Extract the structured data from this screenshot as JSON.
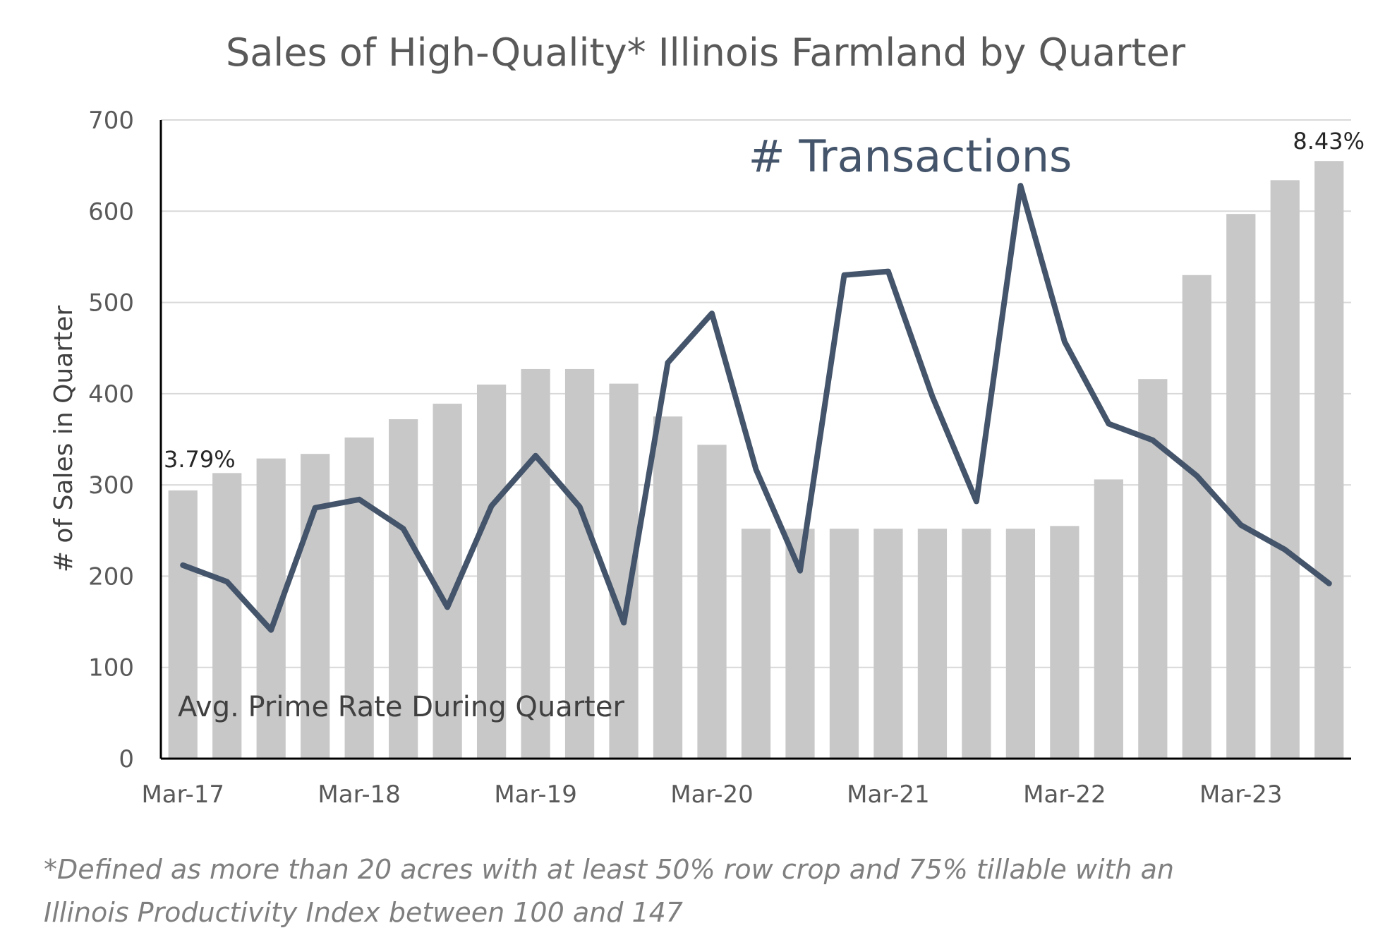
{
  "chart_data": {
    "type": "bar+line",
    "title": "Sales of High-Quality* Illinois Farmland by Quarter",
    "ylabel": "# of Sales in Quarter",
    "ylim": [
      0,
      700
    ],
    "yticks": [
      0,
      100,
      200,
      300,
      400,
      500,
      600,
      700
    ],
    "grid": true,
    "x_tick_labels": [
      "Mar-17",
      "Mar-18",
      "Mar-19",
      "Mar-20",
      "Mar-21",
      "Mar-22",
      "Mar-23"
    ],
    "x_tick_positions": [
      0,
      4,
      8,
      12,
      16,
      20,
      24
    ],
    "categories": [
      "Mar-17",
      "Jun-17",
      "Sep-17",
      "Dec-17",
      "Mar-18",
      "Jun-18",
      "Sep-18",
      "Dec-18",
      "Mar-19",
      "Jun-19",
      "Sep-19",
      "Dec-19",
      "Mar-20",
      "Jun-20",
      "Sep-20",
      "Dec-20",
      "Mar-21",
      "Jun-21",
      "Sep-21",
      "Dec-21",
      "Mar-22",
      "Jun-22",
      "Sep-22",
      "Dec-22",
      "Mar-23",
      "Jun-23",
      "Sep-23"
    ],
    "series": [
      {
        "label": "Avg. Prime Rate During Quarter",
        "type": "bar",
        "color": "#c8c8c8",
        "values": [
          294,
          313,
          329,
          334,
          352,
          372,
          389,
          410,
          427,
          427,
          411,
          375,
          344,
          252,
          252,
          252,
          252,
          252,
          252,
          252,
          255,
          306,
          416,
          530,
          597,
          634,
          655
        ]
      },
      {
        "label": "# Transactions",
        "type": "line",
        "color": "#44546a",
        "values": [
          212,
          194,
          141,
          275,
          284,
          252,
          166,
          277,
          332,
          276,
          149,
          434,
          488,
          317,
          206,
          530,
          534,
          397,
          282,
          628,
          457,
          367,
          349,
          310,
          256,
          229,
          192
        ]
      }
    ],
    "annotations": [
      {
        "text": "3.79%",
        "index": 0
      },
      {
        "text": "8.43%",
        "index": 26
      }
    ],
    "footnote_lines": [
      "*Defined as more than 20 acres with at least 50% row crop and 75% tillable with an",
      "Illinois Productivity Index between 100 and 147"
    ]
  }
}
